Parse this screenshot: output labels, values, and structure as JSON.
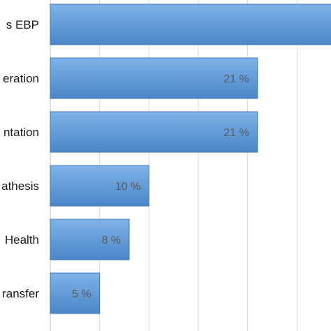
{
  "chart_data": {
    "type": "bar",
    "orientation": "horizontal",
    "categories": [
      "s EBP",
      "eration",
      "ntation",
      "athesis",
      "Health",
      "ransfer"
    ],
    "values": [
      29,
      21,
      21,
      10,
      8,
      5
    ],
    "data_labels": [
      "",
      "21 %",
      "21 %",
      "10 %",
      "8 %",
      "5 %"
    ],
    "xlim": [
      0,
      30
    ],
    "grid": true,
    "legend": "none",
    "bar_color_top": "#7fb2e8",
    "bar_color_bottom": "#4a86c8",
    "bar_edge_color": "#3f78b8"
  }
}
